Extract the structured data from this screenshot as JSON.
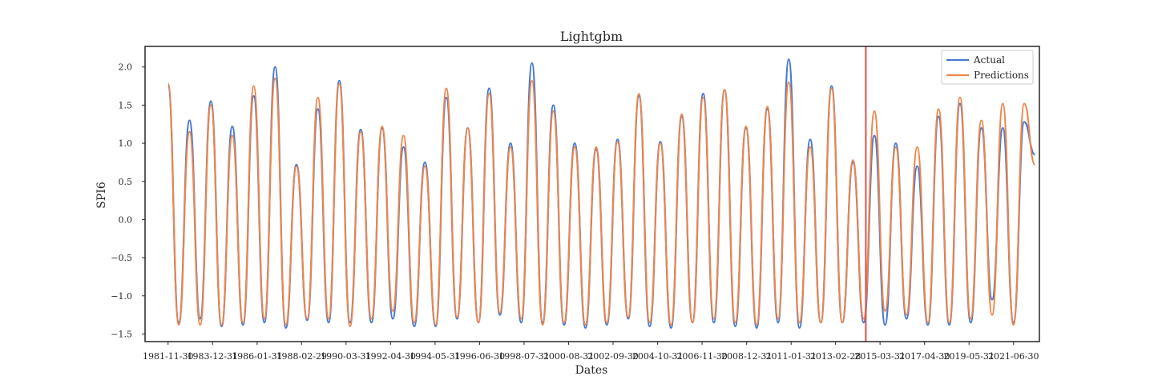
{
  "chart_data": {
    "type": "line",
    "title": "Lightgbm",
    "xlabel": "Dates",
    "ylabel": "SPI6",
    "xlim": [
      "1980-11-01",
      "2022-09-15"
    ],
    "ylim": [
      -1.6,
      2.27
    ],
    "y_ticks": [
      -1.5,
      -1.0,
      -0.5,
      0.0,
      0.5,
      1.0,
      1.5,
      2.0
    ],
    "y_tick_labels": [
      "−1.5",
      "−1.0",
      "−0.5",
      "0.0",
      "0.5",
      "1.0",
      "1.5",
      "2.0"
    ],
    "x_ticks": [
      "1981-11-30",
      "1983-12-31",
      "1986-01-31",
      "1988-02-29",
      "1990-03-31",
      "1992-04-30",
      "1994-05-31",
      "1996-06-30",
      "1998-07-31",
      "2000-08-31",
      "2002-09-30",
      "2004-10-31",
      "2006-11-30",
      "2008-12-31",
      "2011-01-31",
      "2013-02-28",
      "2015-03-31",
      "2017-04-30",
      "2019-05-31",
      "2021-06-30"
    ],
    "grid": false,
    "legend_position": "top-right",
    "split_date": "2014-07-31",
    "split_line_color": "#d9534f",
    "x_date_range": [
      "1981-11-30",
      "2022-06-30"
    ],
    "series": [
      {
        "name": "Actual",
        "color": "#4878cf",
        "y": [
          1.75,
          -1.35,
          1.3,
          -1.3,
          1.55,
          -1.4,
          1.22,
          -1.38,
          1.62,
          -1.35,
          2.0,
          -1.42,
          0.72,
          -1.32,
          1.45,
          -1.35,
          1.82,
          -1.35,
          1.18,
          -1.35,
          1.2,
          -1.3,
          0.95,
          -1.4,
          0.75,
          -1.4,
          1.6,
          -1.3,
          1.2,
          -1.35,
          1.72,
          -1.25,
          1.0,
          -1.35,
          2.05,
          -1.35,
          1.5,
          -1.38,
          1.0,
          -1.42,
          0.92,
          -1.38,
          1.05,
          -1.3,
          1.62,
          -1.4,
          1.02,
          -1.42,
          1.35,
          -1.35,
          1.65,
          -1.35,
          1.7,
          -1.4,
          1.2,
          -1.42,
          1.45,
          -1.35,
          2.1,
          -1.42,
          1.05,
          -1.35,
          1.75,
          -1.35,
          0.75,
          -1.35,
          1.1,
          -1.38,
          1.0,
          -1.3,
          0.7,
          -1.38,
          1.35,
          -1.38,
          1.52,
          -1.35,
          1.2,
          -1.05,
          1.2,
          -1.35,
          1.28,
          0.85
        ]
      },
      {
        "name": "Predictions",
        "color": "#ee854a",
        "y": [
          1.78,
          -1.38,
          1.15,
          -1.38,
          1.5,
          -1.38,
          1.1,
          -1.35,
          1.75,
          -1.3,
          1.85,
          -1.38,
          0.7,
          -1.3,
          1.6,
          -1.3,
          1.78,
          -1.4,
          1.15,
          -1.3,
          1.22,
          -1.2,
          1.1,
          -1.35,
          0.7,
          -1.38,
          1.72,
          -1.28,
          1.2,
          -1.35,
          1.65,
          -1.22,
          0.95,
          -1.3,
          1.82,
          -1.38,
          1.42,
          -1.35,
          0.95,
          -1.38,
          0.95,
          -1.35,
          1.02,
          -1.28,
          1.65,
          -1.35,
          1.0,
          -1.38,
          1.38,
          -1.35,
          1.6,
          -1.3,
          1.7,
          -1.35,
          1.22,
          -1.38,
          1.48,
          -1.3,
          1.8,
          -1.35,
          0.95,
          -1.35,
          1.72,
          -1.35,
          0.78,
          -1.3,
          1.42,
          -1.2,
          0.95,
          -1.25,
          0.95,
          -1.35,
          1.45,
          -1.35,
          1.6,
          -1.3,
          1.3,
          -1.25,
          1.52,
          -1.38,
          1.52,
          0.72
        ]
      }
    ]
  }
}
